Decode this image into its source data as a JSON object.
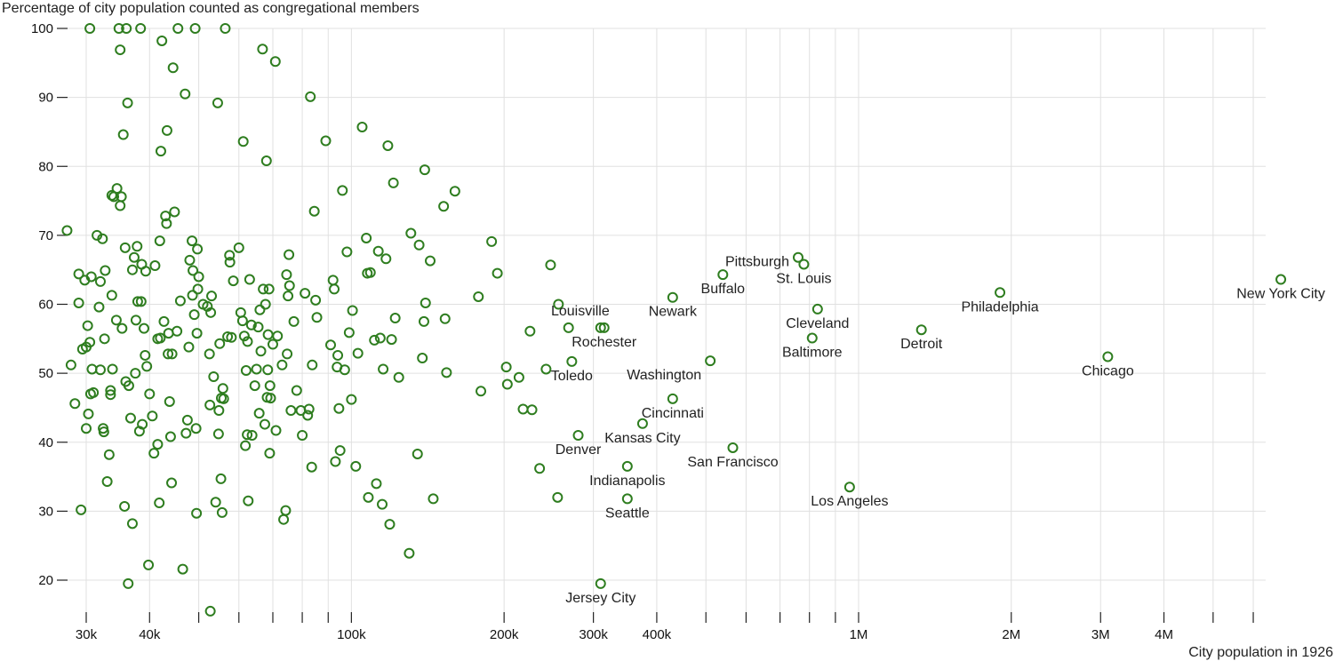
{
  "chart_data": {
    "type": "scatter",
    "ylabel": "Percentage of city population counted as congregational members",
    "xlabel": "City population in 1926",
    "x_scale": "log",
    "xlim": [
      26000,
      7200000
    ],
    "ylim": [
      15,
      100
    ],
    "grid": true,
    "point_color": "#2e7d1f",
    "y_ticks": [
      20,
      30,
      40,
      50,
      60,
      70,
      80,
      90,
      100
    ],
    "x_gridlines": [
      30000,
      40000,
      50000,
      60000,
      70000,
      80000,
      90000,
      100000,
      200000,
      300000,
      400000,
      500000,
      600000,
      700000,
      800000,
      900000,
      1000000,
      2000000,
      3000000,
      4000000,
      5000000,
      6000000
    ],
    "x_tick_labels": [
      {
        "value": 30000,
        "label": "30k"
      },
      {
        "value": 40000,
        "label": "40k"
      },
      {
        "value": 100000,
        "label": "100k"
      },
      {
        "value": 200000,
        "label": "200k"
      },
      {
        "value": 300000,
        "label": "300k"
      },
      {
        "value": 400000,
        "label": "400k"
      },
      {
        "value": 1000000,
        "label": "1M"
      },
      {
        "value": 2000000,
        "label": "2M"
      },
      {
        "value": 3000000,
        "label": "3M"
      },
      {
        "value": 4000000,
        "label": "4M"
      }
    ],
    "labeled_points": [
      {
        "name": "New York City",
        "x": 6800000,
        "y": 63.6,
        "anchor": "middle",
        "dx": 0,
        "dy": 21
      },
      {
        "name": "Chicago",
        "x": 3100000,
        "y": 52.4,
        "anchor": "middle",
        "dx": 0,
        "dy": 21
      },
      {
        "name": "Philadelphia",
        "x": 1900000,
        "y": 61.7,
        "anchor": "middle",
        "dx": 0,
        "dy": 21
      },
      {
        "name": "Detroit",
        "x": 1330000,
        "y": 56.3,
        "anchor": "middle",
        "dx": 0,
        "dy": 21
      },
      {
        "name": "Los Angeles",
        "x": 960000,
        "y": 33.5,
        "anchor": "middle",
        "dx": 0,
        "dy": 21
      },
      {
        "name": "Cleveland",
        "x": 830000,
        "y": 59.3,
        "anchor": "middle",
        "dx": 0,
        "dy": 21
      },
      {
        "name": "Baltimore",
        "x": 810000,
        "y": 55.1,
        "anchor": "middle",
        "dx": 0,
        "dy": 21
      },
      {
        "name": "St. Louis",
        "x": 780000,
        "y": 65.8,
        "anchor": "middle",
        "dx": 0,
        "dy": 21
      },
      {
        "name": "Pittsburgh",
        "x": 760000,
        "y": 66.8,
        "anchor": "end",
        "dx": -10,
        "dy": 10
      },
      {
        "name": "Buffalo",
        "x": 540000,
        "y": 64.3,
        "anchor": "middle",
        "dx": 0,
        "dy": 21
      },
      {
        "name": "San Francisco",
        "x": 565000,
        "y": 39.2,
        "anchor": "middle",
        "dx": 0,
        "dy": 21
      },
      {
        "name": "Washington",
        "x": 510000,
        "y": 51.8,
        "anchor": "end",
        "dx": -10,
        "dy": 21
      },
      {
        "name": "Newark",
        "x": 430000,
        "y": 61.0,
        "anchor": "middle",
        "dx": 0,
        "dy": 21
      },
      {
        "name": "Cincinnati",
        "x": 430000,
        "y": 46.3,
        "anchor": "middle",
        "dx": 0,
        "dy": 21
      },
      {
        "name": "Kansas City",
        "x": 375000,
        "y": 42.7,
        "anchor": "middle",
        "dx": 0,
        "dy": 21
      },
      {
        "name": "Seattle",
        "x": 350000,
        "y": 31.8,
        "anchor": "middle",
        "dx": 0,
        "dy": 21
      },
      {
        "name": "Indianapolis",
        "x": 350000,
        "y": 36.5,
        "anchor": "middle",
        "dx": 0,
        "dy": 21
      },
      {
        "name": "Jersey City",
        "x": 310000,
        "y": 19.5,
        "anchor": "middle",
        "dx": 0,
        "dy": 21
      },
      {
        "name": "Rochester",
        "x": 315000,
        "y": 56.6,
        "anchor": "middle",
        "dx": 0,
        "dy": 21
      },
      {
        "name": "Louisville",
        "x": 310000,
        "y": 56.6,
        "anchor": "end",
        "dx": 10,
        "dy": -14
      },
      {
        "name": "Toledo",
        "x": 272000,
        "y": 51.7,
        "anchor": "middle",
        "dx": 0,
        "dy": 21
      },
      {
        "name": "Denver",
        "x": 280000,
        "y": 41.0,
        "anchor": "middle",
        "dx": 0,
        "dy": 21
      }
    ],
    "points": [
      [
        27500,
        70.7
      ],
      [
        28000,
        51.2
      ],
      [
        28500,
        45.6
      ],
      [
        29000,
        60.2
      ],
      [
        29000,
        64.4
      ],
      [
        29300,
        30.2
      ],
      [
        29500,
        53.5
      ],
      [
        30000,
        53.8
      ],
      [
        29800,
        63.5
      ],
      [
        30000,
        42.0
      ],
      [
        30200,
        56.9
      ],
      [
        30300,
        44.1
      ],
      [
        30500,
        54.5
      ],
      [
        30600,
        47.0
      ],
      [
        30700,
        64.0
      ],
      [
        30800,
        50.6
      ],
      [
        30500,
        100.0
      ],
      [
        31000,
        47.2
      ],
      [
        31500,
        70.0
      ],
      [
        31800,
        59.6
      ],
      [
        32000,
        63.3
      ],
      [
        32000,
        50.5
      ],
      [
        32300,
        69.5
      ],
      [
        32400,
        42.0
      ],
      [
        32500,
        41.5
      ],
      [
        32600,
        55.0
      ],
      [
        32700,
        64.9
      ],
      [
        33000,
        34.3
      ],
      [
        33300,
        38.2
      ],
      [
        33500,
        47.5
      ],
      [
        33500,
        46.9
      ],
      [
        33800,
        50.6
      ],
      [
        33700,
        61.3
      ],
      [
        33700,
        75.8
      ],
      [
        34000,
        75.6
      ],
      [
        34400,
        57.7
      ],
      [
        34500,
        76.8
      ],
      [
        34800,
        100.0
      ],
      [
        35000,
        74.3
      ],
      [
        35000,
        96.9
      ],
      [
        35200,
        75.6
      ],
      [
        35300,
        56.5
      ],
      [
        35500,
        84.6
      ],
      [
        35700,
        30.7
      ],
      [
        35800,
        68.2
      ],
      [
        35900,
        48.8
      ],
      [
        36000,
        100.0
      ],
      [
        36200,
        89.2
      ],
      [
        36300,
        19.5
      ],
      [
        36400,
        48.2
      ],
      [
        36700,
        43.5
      ],
      [
        37000,
        28.2
      ],
      [
        37000,
        65.0
      ],
      [
        37300,
        66.8
      ],
      [
        37500,
        50.0
      ],
      [
        37600,
        57.7
      ],
      [
        37800,
        68.4
      ],
      [
        37900,
        60.4
      ],
      [
        38200,
        41.6
      ],
      [
        38400,
        100.0
      ],
      [
        38500,
        60.4
      ],
      [
        38600,
        65.8
      ],
      [
        38700,
        42.6
      ],
      [
        39000,
        56.5
      ],
      [
        39200,
        52.6
      ],
      [
        39300,
        64.8
      ],
      [
        39500,
        51.0
      ],
      [
        39800,
        22.2
      ],
      [
        40000,
        47.0
      ],
      [
        40500,
        43.8
      ],
      [
        40800,
        38.4
      ],
      [
        41000,
        65.6
      ],
      [
        41500,
        39.7
      ],
      [
        41500,
        55.0
      ],
      [
        41800,
        31.2
      ],
      [
        41900,
        69.2
      ],
      [
        42000,
        55.1
      ],
      [
        42100,
        82.2
      ],
      [
        42300,
        98.2
      ],
      [
        42700,
        57.5
      ],
      [
        43000,
        72.8
      ],
      [
        43200,
        71.7
      ],
      [
        43300,
        85.2
      ],
      [
        43500,
        52.8
      ],
      [
        43600,
        55.8
      ],
      [
        43800,
        45.9
      ],
      [
        44000,
        40.8
      ],
      [
        44200,
        34.1
      ],
      [
        44300,
        52.8
      ],
      [
        44500,
        94.3
      ],
      [
        44800,
        73.4
      ],
      [
        45300,
        56.1
      ],
      [
        45500,
        100.0
      ],
      [
        46000,
        60.5
      ],
      [
        46500,
        21.6
      ],
      [
        47000,
        90.5
      ],
      [
        47200,
        41.3
      ],
      [
        47500,
        43.2
      ],
      [
        47800,
        53.8
      ],
      [
        48000,
        66.4
      ],
      [
        48500,
        69.2
      ],
      [
        48600,
        61.3
      ],
      [
        48700,
        64.9
      ],
      [
        49000,
        58.5
      ],
      [
        49200,
        100.0
      ],
      [
        49400,
        42.0
      ],
      [
        49500,
        29.7
      ],
      [
        49600,
        55.8
      ],
      [
        49700,
        68.0
      ],
      [
        49800,
        62.2
      ],
      [
        50000,
        64.0
      ],
      [
        51000,
        60.0
      ],
      [
        52000,
        59.7
      ],
      [
        52500,
        52.8
      ],
      [
        52600,
        45.4
      ],
      [
        52700,
        15.5
      ],
      [
        52800,
        58.8
      ],
      [
        53000,
        61.2
      ],
      [
        53500,
        49.5
      ],
      [
        54000,
        31.3
      ],
      [
        54500,
        89.2
      ],
      [
        54700,
        41.2
      ],
      [
        54800,
        44.6
      ],
      [
        55000,
        54.3
      ],
      [
        55300,
        34.7
      ],
      [
        55400,
        46.4
      ],
      [
        55600,
        29.8
      ],
      [
        55800,
        47.8
      ],
      [
        56000,
        46.3
      ],
      [
        56400,
        100.0
      ],
      [
        57000,
        55.3
      ],
      [
        57500,
        67.1
      ],
      [
        57600,
        66.1
      ],
      [
        58000,
        55.2
      ],
      [
        58500,
        63.4
      ],
      [
        60000,
        68.2
      ],
      [
        60500,
        58.8
      ],
      [
        61000,
        57.6
      ],
      [
        61200,
        83.6
      ],
      [
        61500,
        55.4
      ],
      [
        61800,
        39.5
      ],
      [
        62000,
        50.4
      ],
      [
        62300,
        41.1
      ],
      [
        62400,
        54.6
      ],
      [
        62600,
        31.5
      ],
      [
        63000,
        63.6
      ],
      [
        63500,
        57.0
      ],
      [
        63700,
        41.0
      ],
      [
        64500,
        48.2
      ],
      [
        65000,
        50.6
      ],
      [
        65500,
        56.7
      ],
      [
        65800,
        44.2
      ],
      [
        66000,
        59.2
      ],
      [
        66300,
        53.2
      ],
      [
        66800,
        97.0
      ],
      [
        67000,
        62.2
      ],
      [
        67500,
        42.6
      ],
      [
        67700,
        60.0
      ],
      [
        68000,
        80.8
      ],
      [
        68200,
        46.5
      ],
      [
        68400,
        50.5
      ],
      [
        68500,
        55.6
      ],
      [
        68800,
        62.2
      ],
      [
        69000,
        38.4
      ],
      [
        69100,
        48.2
      ],
      [
        69300,
        46.4
      ],
      [
        70000,
        54.2
      ],
      [
        70800,
        95.2
      ],
      [
        71000,
        41.7
      ],
      [
        71500,
        55.4
      ],
      [
        73000,
        51.2
      ],
      [
        73500,
        28.8
      ],
      [
        74200,
        30.1
      ],
      [
        74500,
        64.3
      ],
      [
        74700,
        52.8
      ],
      [
        75000,
        61.2
      ],
      [
        75300,
        67.2
      ],
      [
        75500,
        62.7
      ],
      [
        76000,
        44.6
      ],
      [
        77000,
        57.5
      ],
      [
        78000,
        47.5
      ],
      [
        79500,
        44.6
      ],
      [
        80000,
        41.0
      ],
      [
        81000,
        61.6
      ],
      [
        82000,
        43.9
      ],
      [
        82500,
        44.8
      ],
      [
        83000,
        90.1
      ],
      [
        83500,
        36.4
      ],
      [
        83700,
        51.2
      ],
      [
        84500,
        73.5
      ],
      [
        85000,
        60.6
      ],
      [
        85500,
        58.1
      ],
      [
        89000,
        83.7
      ],
      [
        91000,
        54.1
      ],
      [
        92000,
        63.5
      ],
      [
        92500,
        62.2
      ],
      [
        93000,
        37.2
      ],
      [
        93700,
        50.9
      ],
      [
        94000,
        52.6
      ],
      [
        94500,
        44.9
      ],
      [
        95000,
        38.8
      ],
      [
        96000,
        76.5
      ],
      [
        97000,
        50.5
      ],
      [
        98000,
        67.6
      ],
      [
        99000,
        55.9
      ],
      [
        100000,
        46.2
      ],
      [
        100500,
        59.1
      ],
      [
        102000,
        36.5
      ],
      [
        103000,
        52.9
      ],
      [
        105000,
        85.7
      ],
      [
        107000,
        69.6
      ],
      [
        107500,
        64.5
      ],
      [
        108000,
        32.0
      ],
      [
        109000,
        64.6
      ],
      [
        111000,
        54.8
      ],
      [
        112000,
        34.0
      ],
      [
        113000,
        67.7
      ],
      [
        114000,
        55.1
      ],
      [
        115000,
        31.0
      ],
      [
        115500,
        50.6
      ],
      [
        117000,
        66.6
      ],
      [
        118000,
        83.0
      ],
      [
        119000,
        28.1
      ],
      [
        120000,
        54.9
      ],
      [
        121000,
        77.6
      ],
      [
        122000,
        58.0
      ],
      [
        124000,
        49.4
      ],
      [
        130000,
        23.9
      ],
      [
        131000,
        70.3
      ],
      [
        135000,
        38.3
      ],
      [
        136000,
        68.6
      ],
      [
        138000,
        52.2
      ],
      [
        139000,
        57.5
      ],
      [
        139500,
        79.5
      ],
      [
        140000,
        60.2
      ],
      [
        143000,
        66.3
      ],
      [
        145000,
        31.8
      ],
      [
        152000,
        74.2
      ],
      [
        153000,
        57.9
      ],
      [
        154000,
        50.1
      ],
      [
        160000,
        76.4
      ],
      [
        178000,
        61.1
      ],
      [
        180000,
        47.4
      ],
      [
        189000,
        69.1
      ],
      [
        194000,
        64.5
      ],
      [
        202000,
        50.9
      ],
      [
        203000,
        48.4
      ],
      [
        214000,
        49.4
      ],
      [
        218000,
        44.8
      ],
      [
        225000,
        56.1
      ],
      [
        227000,
        44.7
      ],
      [
        235000,
        36.2
      ],
      [
        242000,
        50.6
      ],
      [
        247000,
        65.7
      ],
      [
        255000,
        32.0
      ],
      [
        256000,
        60.0
      ],
      [
        268000,
        56.6
      ]
    ]
  }
}
